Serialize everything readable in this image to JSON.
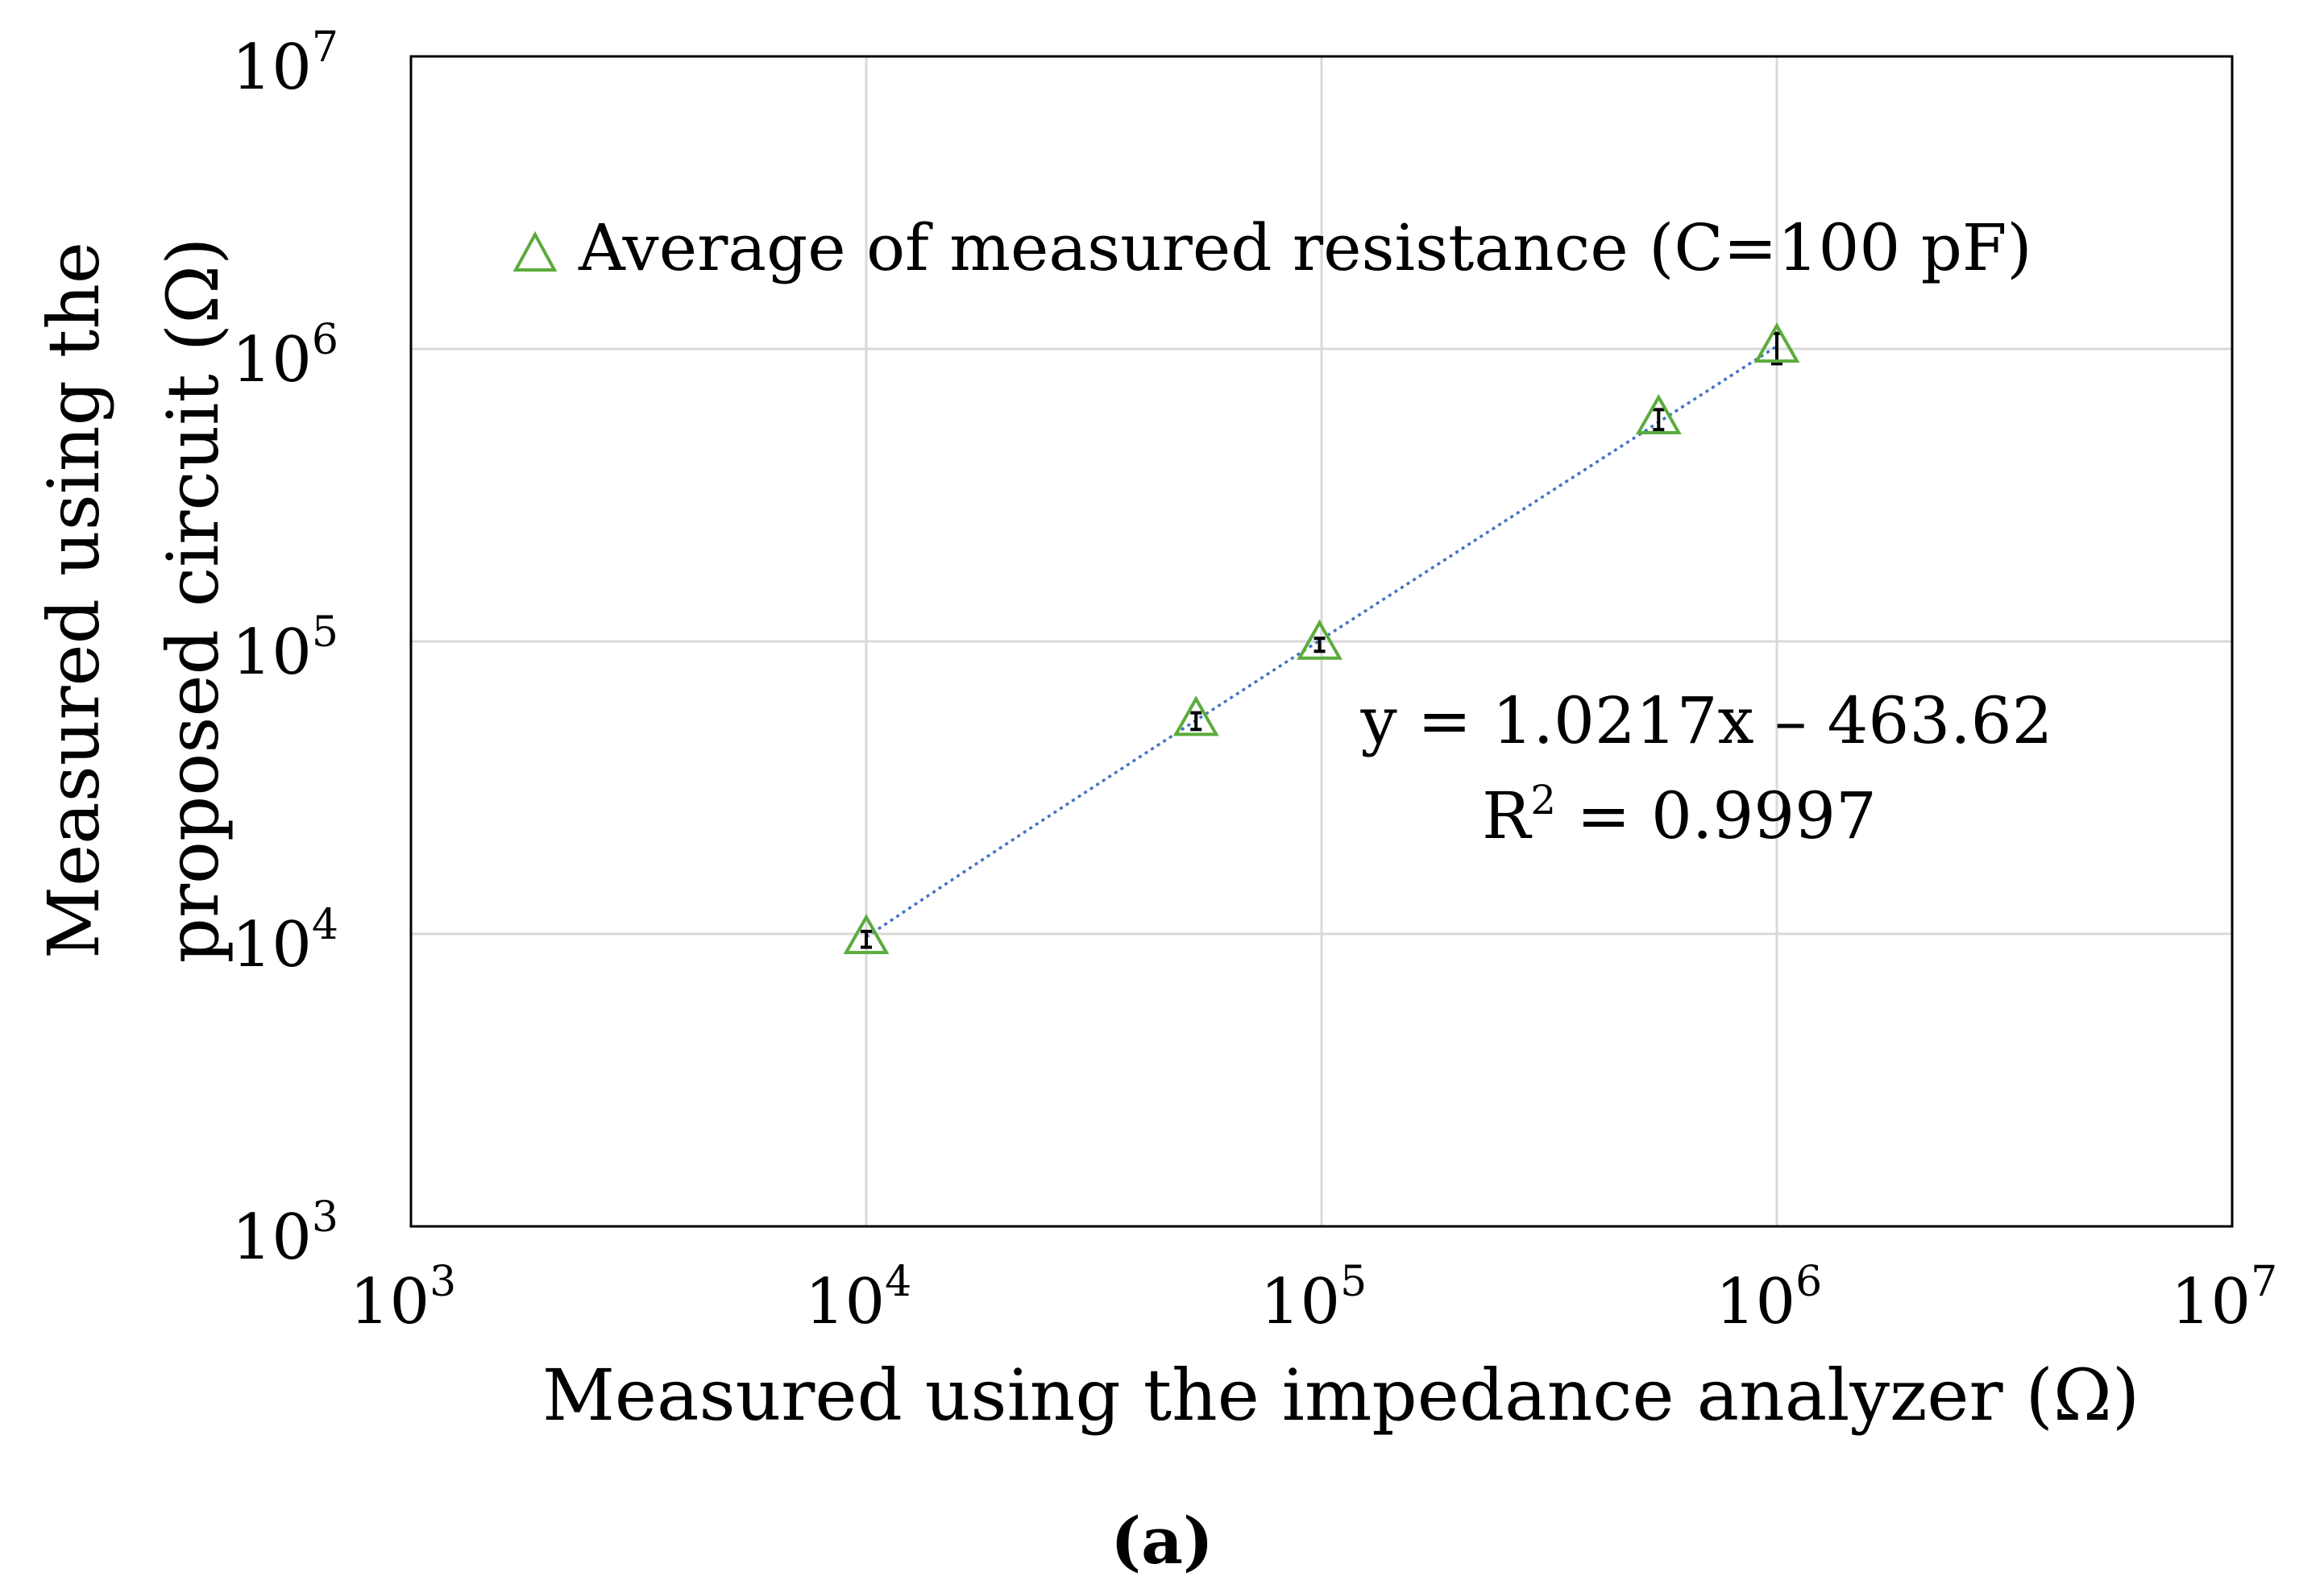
{
  "figure_label": "(a)",
  "chart_data": {
    "type": "scatter",
    "x_scale": "log",
    "y_scale": "log",
    "xlabel": "Measured using the impedance analyzer (Ω)",
    "ylabel_lines": [
      "Measured using the",
      "proposed circuit (Ω)"
    ],
    "xlim": [
      1000,
      10000000
    ],
    "ylim": [
      1000,
      10000000
    ],
    "grid": true,
    "x_ticks": [
      {
        "base": "10",
        "exp": "3",
        "value": 1000
      },
      {
        "base": "10",
        "exp": "4",
        "value": 10000
      },
      {
        "base": "10",
        "exp": "5",
        "value": 100000
      },
      {
        "base": "10",
        "exp": "6",
        "value": 1000000
      },
      {
        "base": "10",
        "exp": "7",
        "value": 10000000
      }
    ],
    "y_ticks": [
      {
        "base": "10",
        "exp": "3",
        "value": 1000
      },
      {
        "base": "10",
        "exp": "4",
        "value": 10000
      },
      {
        "base": "10",
        "exp": "5",
        "value": 100000
      },
      {
        "base": "10",
        "exp": "6",
        "value": 1000000
      },
      {
        "base": "10",
        "exp": "7",
        "value": 10000000
      }
    ],
    "series": [
      {
        "name": "Average of measured resistance (C=100 pF)",
        "marker": "open-triangle",
        "color": "#5aac3c",
        "x": [
          10000,
          53000,
          99000,
          550000,
          1000000
        ],
        "y": [
          9600,
          53500,
          97500,
          575000,
          1010000
        ],
        "err": [
          600,
          3500,
          5000,
          45000,
          120000
        ]
      }
    ],
    "trendline": {
      "color": "#4472c4",
      "style": "dotted",
      "x_range": [
        10000,
        1000000
      ],
      "slope": 1.0217,
      "intercept": -463.62,
      "equation": "y = 1.0217x – 463.62",
      "r_squared_label": "R",
      "r_squared_sup": "2",
      "r_squared_value": " = 0.9997"
    }
  }
}
